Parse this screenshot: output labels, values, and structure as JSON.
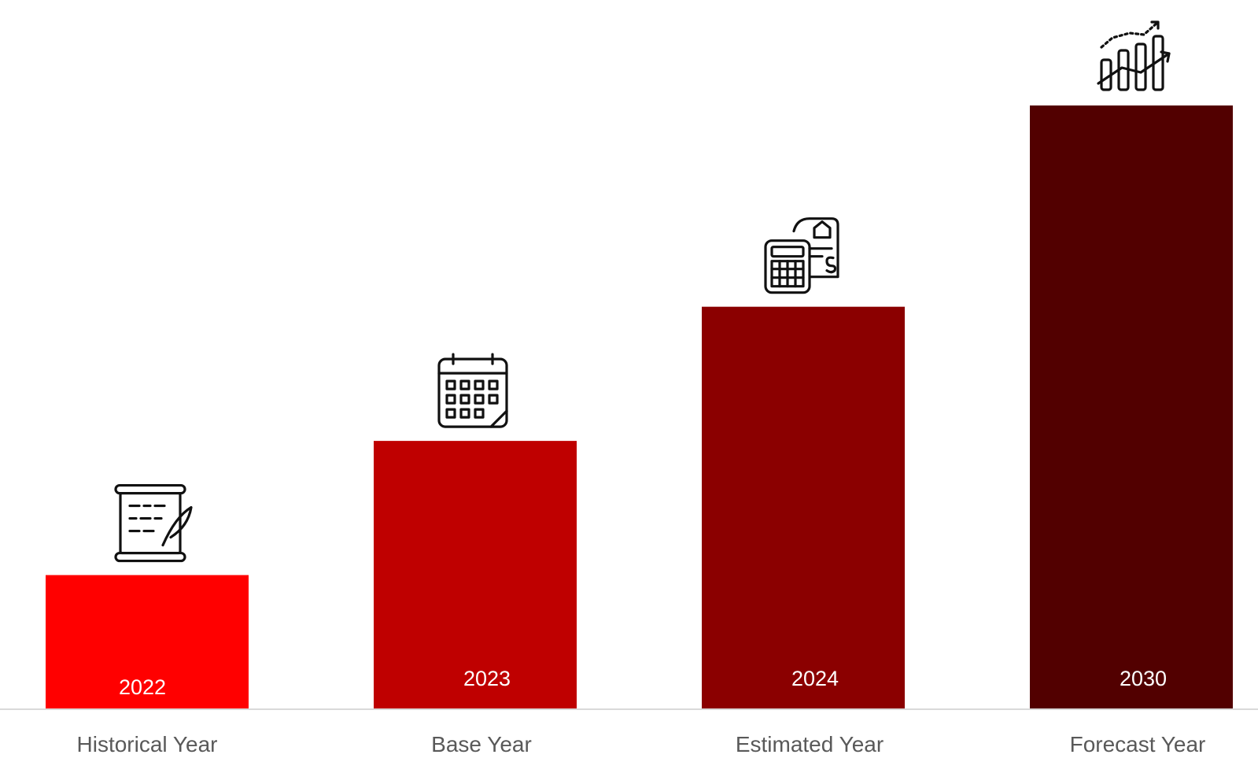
{
  "chart_data": {
    "type": "bar",
    "categories": [
      "Historical Year",
      "Base Year",
      "Estimated Year",
      "Forecast Year"
    ],
    "bar_labels": [
      "2022",
      "2023",
      "2024",
      "2030"
    ],
    "values": [
      1,
      2,
      3,
      4.5
    ],
    "colors": [
      "#ff0000",
      "#bf0000",
      "#8b0000",
      "#520000"
    ],
    "icons": [
      "scroll-icon",
      "calendar-icon",
      "calculator-invoice-icon",
      "growth-chart-icon"
    ],
    "ylim": [
      0,
      4.5
    ],
    "grid": false,
    "legend": "none",
    "baseline_color": "#d9d9d9"
  }
}
